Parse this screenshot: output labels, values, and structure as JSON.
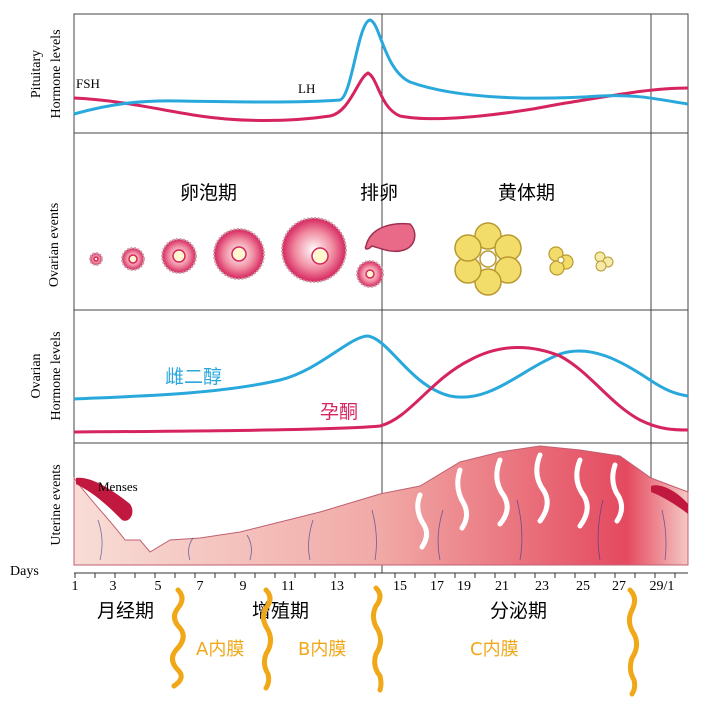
{
  "panels": {
    "pituitary": {
      "label_line1": "Pituitary",
      "label_line2": "Hormone levels",
      "fsh": "FSH",
      "lh": "LH"
    },
    "ovarian_events": {
      "label": "Ovarian events",
      "follicular": "卵泡期",
      "ovulation": "排卵",
      "luteal": "黄体期"
    },
    "ovarian_hormones": {
      "label_line1": "Ovarian",
      "label_line2": "Hormone levels",
      "estradiol": "雌二醇",
      "progesterone": "孕酮"
    },
    "uterine": {
      "label": "Uterine events",
      "menses": "Menses"
    }
  },
  "axis": {
    "label": "Days",
    "ticks": [
      "1",
      "3",
      "5",
      "7",
      "9",
      "11",
      "13",
      "15",
      "17",
      "19",
      "21",
      "23",
      "25",
      "27",
      "29/1"
    ]
  },
  "phases": {
    "menstrual": "月经期",
    "proliferative": "增殖期",
    "secretory": "分泌期"
  },
  "annotations": {
    "a": "A内膜",
    "b": "B内膜",
    "c": "C内膜"
  },
  "colors": {
    "blue": "#29a8dc",
    "magenta": "#d6245f",
    "orange": "#f0a818",
    "yellow": "#f2dd6a"
  }
}
